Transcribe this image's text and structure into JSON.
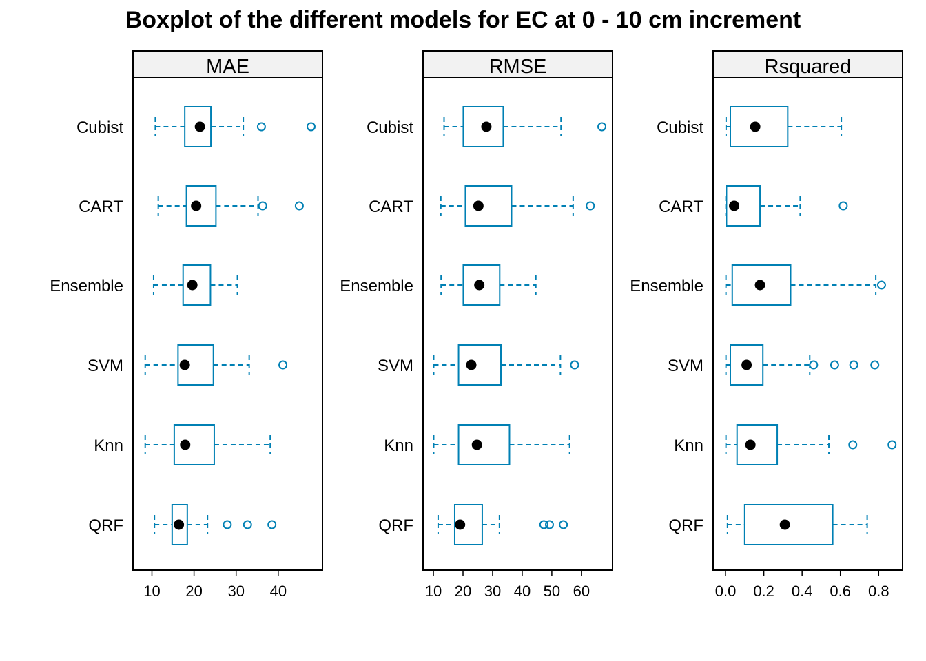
{
  "title": "Boxplot of the different models for EC at 0 - 10 cm increment",
  "colors": {
    "box": "#0080B4",
    "median": "#000000",
    "frame": "#000000",
    "strip": "#F2F2F2"
  },
  "chart_data": {
    "type": "boxplot",
    "orientation": "horizontal",
    "categories": [
      "Cubist",
      "CART",
      "Ensemble",
      "SVM",
      "Knn",
      "QRF"
    ],
    "panels": [
      {
        "name": "MAE",
        "xlim": [
          5.5,
          50.5
        ],
        "ticks": [
          10,
          20,
          30,
          40
        ],
        "boxes": [
          {
            "model": "Cubist",
            "lower": 10.8,
            "q1": 17.8,
            "median": 21.4,
            "q3": 24.0,
            "upper": 31.7,
            "outliers": [
              36.0,
              47.8
            ]
          },
          {
            "model": "CART",
            "lower": 11.5,
            "q1": 18.2,
            "median": 20.5,
            "q3": 25.2,
            "upper": 35.2,
            "outliers": [
              36.3,
              45.0
            ]
          },
          {
            "model": "Ensemble",
            "lower": 10.4,
            "q1": 17.4,
            "median": 19.6,
            "q3": 23.9,
            "upper": 30.3,
            "outliers": []
          },
          {
            "model": "SVM",
            "lower": 8.4,
            "q1": 16.2,
            "median": 17.8,
            "q3": 24.6,
            "upper": 33.1,
            "outliers": [
              41.1
            ]
          },
          {
            "model": "Knn",
            "lower": 8.4,
            "q1": 15.3,
            "median": 17.9,
            "q3": 24.8,
            "upper": 38.1,
            "outliers": []
          },
          {
            "model": "QRF",
            "lower": 10.6,
            "q1": 14.8,
            "median": 16.4,
            "q3": 18.4,
            "upper": 23.2,
            "outliers": [
              27.9,
              32.7,
              38.5
            ]
          }
        ]
      },
      {
        "name": "RMSE",
        "xlim": [
          6.5,
          70.5
        ],
        "ticks": [
          10,
          20,
          30,
          40,
          50,
          60
        ],
        "boxes": [
          {
            "model": "Cubist",
            "lower": 13.6,
            "q1": 20.1,
            "median": 27.9,
            "q3": 33.6,
            "upper": 53.1,
            "outliers": [
              66.9
            ]
          },
          {
            "model": "CART",
            "lower": 12.5,
            "q1": 20.8,
            "median": 25.2,
            "q3": 36.4,
            "upper": 57.2,
            "outliers": [
              63.0
            ]
          },
          {
            "model": "Ensemble",
            "lower": 12.6,
            "q1": 20.1,
            "median": 25.5,
            "q3": 32.4,
            "upper": 44.6,
            "outliers": []
          },
          {
            "model": "SVM",
            "lower": 10.1,
            "q1": 18.5,
            "median": 22.8,
            "q3": 32.8,
            "upper": 52.9,
            "outliers": [
              57.7
            ]
          },
          {
            "model": "Knn",
            "lower": 10.1,
            "q1": 18.5,
            "median": 24.7,
            "q3": 35.7,
            "upper": 56.0,
            "outliers": []
          },
          {
            "model": "QRF",
            "lower": 11.6,
            "q1": 17.2,
            "median": 19.0,
            "q3": 26.5,
            "upper": 32.3,
            "outliers": [
              47.3,
              49.2,
              53.9
            ]
          }
        ]
      },
      {
        "name": "Rsquared",
        "xlim": [
          -0.065,
          0.925
        ],
        "ticks": [
          0.0,
          0.2,
          0.4,
          0.6,
          0.8
        ],
        "tick_labels": [
          "0.0",
          "0.2",
          "0.4",
          "0.6",
          "0.8"
        ],
        "boxes": [
          {
            "model": "Cubist",
            "lower": 0.003,
            "q1": 0.025,
            "median": 0.155,
            "q3": 0.325,
            "upper": 0.605,
            "outliers": []
          },
          {
            "model": "CART",
            "lower": 0.002,
            "q1": 0.005,
            "median": 0.045,
            "q3": 0.18,
            "upper": 0.39,
            "outliers": [
              0.615
            ]
          },
          {
            "model": "Ensemble",
            "lower": 0.002,
            "q1": 0.035,
            "median": 0.18,
            "q3": 0.34,
            "upper": 0.785,
            "outliers": [
              0.815
            ]
          },
          {
            "model": "SVM",
            "lower": 0.002,
            "q1": 0.025,
            "median": 0.11,
            "q3": 0.195,
            "upper": 0.44,
            "outliers": [
              0.46,
              0.57,
              0.67,
              0.78
            ]
          },
          {
            "model": "Knn",
            "lower": 0.002,
            "q1": 0.06,
            "median": 0.13,
            "q3": 0.27,
            "upper": 0.54,
            "outliers": [
              0.665,
              0.87
            ]
          },
          {
            "model": "QRF",
            "lower": 0.01,
            "q1": 0.1,
            "median": 0.31,
            "q3": 0.56,
            "upper": 0.74,
            "outliers": []
          }
        ]
      }
    ]
  }
}
